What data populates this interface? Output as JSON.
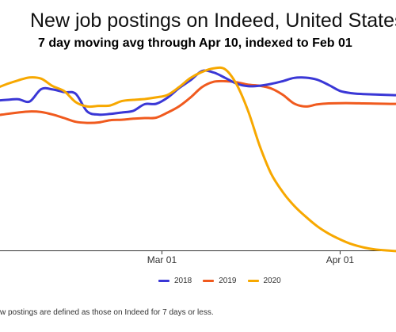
{
  "title": "New job postings on Indeed, United States",
  "subtitle": "7 day moving avg through Apr 10, indexed to Feb 01",
  "footnote": "w postings are defined as those on Indeed for 7 days or less.",
  "colors": {
    "s2018": "#3a37d6",
    "s2019": "#f05a1e",
    "s2020": "#f7a800",
    "axis": "#333333"
  },
  "chart_data": {
    "type": "line",
    "title": "New job postings on Indeed, United States",
    "subtitle": "7 day moving avg through Apr 10, indexed to Feb 01",
    "xlabel": "",
    "ylabel": "",
    "x_ticks": [
      {
        "label": "Mar 01",
        "day": 29
      },
      {
        "label": "Apr 01",
        "day": 60
      }
    ],
    "x_range": [
      0,
      70
    ],
    "y_range": [
      28,
      122
    ],
    "grid": false,
    "legend_position": "bottom",
    "x_days": [
      0,
      2,
      4,
      6,
      8,
      10,
      12,
      14,
      16,
      18,
      20,
      22,
      24,
      26,
      28,
      30,
      32,
      34,
      36,
      38,
      40,
      42,
      44,
      46,
      48,
      50,
      52,
      54,
      56,
      58,
      60,
      62,
      64,
      66,
      68,
      70
    ],
    "series": [
      {
        "name": "2018",
        "color_key": "s2018",
        "values": [
          100.2,
          100.6,
          100.9,
          99.8,
          105.8,
          105.6,
          104.3,
          103.5,
          95.0,
          93.5,
          93.8,
          94.5,
          95.3,
          98.5,
          98.7,
          101.7,
          106.3,
          110.1,
          114.5,
          113.8,
          111.2,
          108.4,
          107.2,
          107.4,
          108.3,
          109.6,
          111.2,
          111.3,
          110.3,
          107.8,
          104.9,
          103.8,
          103.4,
          103.2,
          103.0,
          102.8
        ]
      },
      {
        "name": "2019",
        "color_key": "s2019",
        "values": [
          93.0,
          93.8,
          94.5,
          95.0,
          94.7,
          93.5,
          91.8,
          90.0,
          89.5,
          89.7,
          90.8,
          91.0,
          91.5,
          91.8,
          92.0,
          94.5,
          97.5,
          101.8,
          106.8,
          109.3,
          109.6,
          109.1,
          107.9,
          107.4,
          106.1,
          103.1,
          98.8,
          97.4,
          98.4,
          98.9,
          99.0,
          99.0,
          98.9,
          98.8,
          98.7,
          98.6
        ]
      },
      {
        "name": "2020",
        "color_key": "s2020",
        "values": [
          106.0,
          108.2,
          110.0,
          111.4,
          110.8,
          107.2,
          104.8,
          99.5,
          97.4,
          97.7,
          97.9,
          100.0,
          100.6,
          101.0,
          101.8,
          103.0,
          106.8,
          111.2,
          114.1,
          115.8,
          115.3,
          108.0,
          95.2,
          78.5,
          65.0,
          56.2,
          49.5,
          44.3,
          39.7,
          36.1,
          33.3,
          31.0,
          29.5,
          28.5,
          28.0,
          27.6
        ]
      }
    ]
  },
  "legend": {
    "items": [
      {
        "label": "2018",
        "color_key": "s2018"
      },
      {
        "label": "2019",
        "color_key": "s2019"
      },
      {
        "label": "2020",
        "color_key": "s2020"
      }
    ]
  }
}
